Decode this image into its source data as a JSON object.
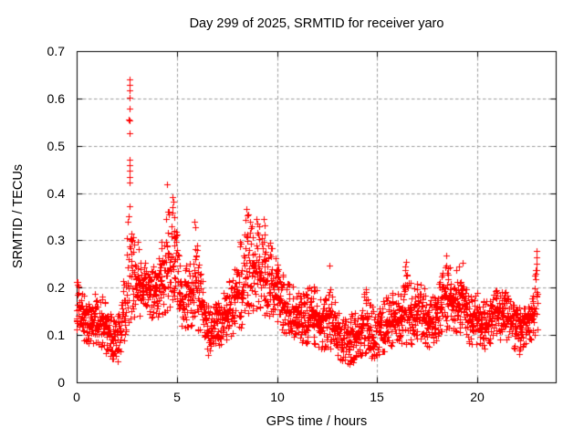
{
  "chart_data": {
    "type": "scatter",
    "title": "Day 299 of 2025, SRMTID for receiver yaro",
    "xlabel": "GPS time / hours",
    "ylabel": "SRMTID / TECUs",
    "xlim": [
      0,
      24
    ],
    "ylim": [
      0,
      0.7
    ],
    "xticks": [
      0,
      5,
      10,
      15,
      20
    ],
    "yticks": [
      0,
      0.1,
      0.2,
      0.3,
      0.4,
      0.5,
      0.6,
      0.7
    ],
    "grid": true,
    "legend": "none",
    "marker": {
      "shape": "plus",
      "color": "#ff0000",
      "size": 7
    },
    "colors": {
      "grid": "#9e9e9e",
      "axis": "#000000",
      "background": "#ffffff",
      "text": "#000000"
    },
    "x_data_range_hours": [
      0.0,
      23.0
    ],
    "sample_count": 2200,
    "band_envelope": [
      [
        0.0,
        0.09,
        0.215
      ],
      [
        0.3,
        0.09,
        0.2
      ],
      [
        0.7,
        0.08,
        0.17
      ],
      [
        1.1,
        0.08,
        0.2
      ],
      [
        1.5,
        0.06,
        0.17
      ],
      [
        1.9,
        0.045,
        0.13
      ],
      [
        2.2,
        0.06,
        0.16
      ],
      [
        2.45,
        0.1,
        0.28
      ],
      [
        2.65,
        0.13,
        0.43
      ],
      [
        2.9,
        0.13,
        0.32
      ],
      [
        3.2,
        0.14,
        0.27
      ],
      [
        3.6,
        0.14,
        0.25
      ],
      [
        4.0,
        0.13,
        0.26
      ],
      [
        4.35,
        0.14,
        0.32
      ],
      [
        4.65,
        0.15,
        0.4
      ],
      [
        4.95,
        0.13,
        0.33
      ],
      [
        5.3,
        0.11,
        0.23
      ],
      [
        5.65,
        0.11,
        0.27
      ],
      [
        5.95,
        0.12,
        0.33
      ],
      [
        6.3,
        0.08,
        0.22
      ],
      [
        6.6,
        0.06,
        0.16
      ],
      [
        7.0,
        0.07,
        0.17
      ],
      [
        7.5,
        0.09,
        0.21
      ],
      [
        7.9,
        0.1,
        0.26
      ],
      [
        8.3,
        0.12,
        0.32
      ],
      [
        8.6,
        0.14,
        0.37
      ],
      [
        8.9,
        0.15,
        0.35
      ],
      [
        9.2,
        0.15,
        0.33
      ],
      [
        9.6,
        0.13,
        0.3
      ],
      [
        10.0,
        0.12,
        0.26
      ],
      [
        10.4,
        0.1,
        0.22
      ],
      [
        10.9,
        0.09,
        0.2
      ],
      [
        11.4,
        0.08,
        0.19
      ],
      [
        11.8,
        0.08,
        0.22
      ],
      [
        12.2,
        0.07,
        0.18
      ],
      [
        12.6,
        0.07,
        0.21
      ],
      [
        13.0,
        0.05,
        0.16
      ],
      [
        13.5,
        0.04,
        0.14
      ],
      [
        14.0,
        0.05,
        0.15
      ],
      [
        14.4,
        0.06,
        0.2
      ],
      [
        14.8,
        0.05,
        0.16
      ],
      [
        15.2,
        0.06,
        0.17
      ],
      [
        15.6,
        0.07,
        0.19
      ],
      [
        16.0,
        0.08,
        0.19
      ],
      [
        16.4,
        0.08,
        0.25
      ],
      [
        16.8,
        0.08,
        0.2
      ],
      [
        17.2,
        0.09,
        0.22
      ],
      [
        17.6,
        0.07,
        0.17
      ],
      [
        18.0,
        0.09,
        0.2
      ],
      [
        18.4,
        0.11,
        0.26
      ],
      [
        18.8,
        0.11,
        0.24
      ],
      [
        19.2,
        0.1,
        0.25
      ],
      [
        19.6,
        0.08,
        0.18
      ],
      [
        20.0,
        0.08,
        0.19
      ],
      [
        20.4,
        0.07,
        0.17
      ],
      [
        20.8,
        0.09,
        0.2
      ],
      [
        21.2,
        0.09,
        0.21
      ],
      [
        21.6,
        0.08,
        0.18
      ],
      [
        22.0,
        0.06,
        0.16
      ],
      [
        22.4,
        0.08,
        0.16
      ],
      [
        22.7,
        0.09,
        0.17
      ],
      [
        22.9,
        0.1,
        0.24
      ],
      [
        23.0,
        0.1,
        0.2
      ]
    ],
    "outlier_points_high": [
      [
        2.62,
        0.64
      ],
      [
        2.63,
        0.629
      ],
      [
        2.62,
        0.617
      ],
      [
        2.63,
        0.601
      ],
      [
        2.62,
        0.578
      ],
      [
        2.6,
        0.556
      ],
      [
        2.64,
        0.553
      ],
      [
        2.63,
        0.527
      ],
      [
        2.62,
        0.471
      ],
      [
        2.64,
        0.459
      ],
      [
        2.66,
        0.448
      ],
      [
        2.63,
        0.433
      ],
      [
        4.53,
        0.419
      ],
      [
        4.78,
        0.392
      ],
      [
        4.83,
        0.381
      ],
      [
        4.8,
        0.37
      ],
      [
        4.6,
        0.36
      ],
      [
        5.88,
        0.34
      ],
      [
        5.92,
        0.327
      ],
      [
        8.48,
        0.366
      ],
      [
        8.52,
        0.352
      ],
      [
        8.44,
        0.344
      ],
      [
        8.95,
        0.345
      ],
      [
        9.33,
        0.346
      ],
      [
        9.38,
        0.332
      ],
      [
        12.62,
        0.246
      ],
      [
        16.42,
        0.255
      ],
      [
        18.42,
        0.268
      ],
      [
        19.25,
        0.252
      ],
      [
        22.95,
        0.278
      ],
      [
        22.96,
        0.264
      ],
      [
        22.94,
        0.25
      ],
      [
        22.97,
        0.237
      ],
      [
        0.05,
        0.213
      ]
    ],
    "outlier_points_low": [
      [
        2.05,
        0.044
      ],
      [
        6.55,
        0.058
      ],
      [
        13.6,
        0.038
      ],
      [
        13.8,
        0.042
      ],
      [
        22.1,
        0.06
      ]
    ]
  }
}
